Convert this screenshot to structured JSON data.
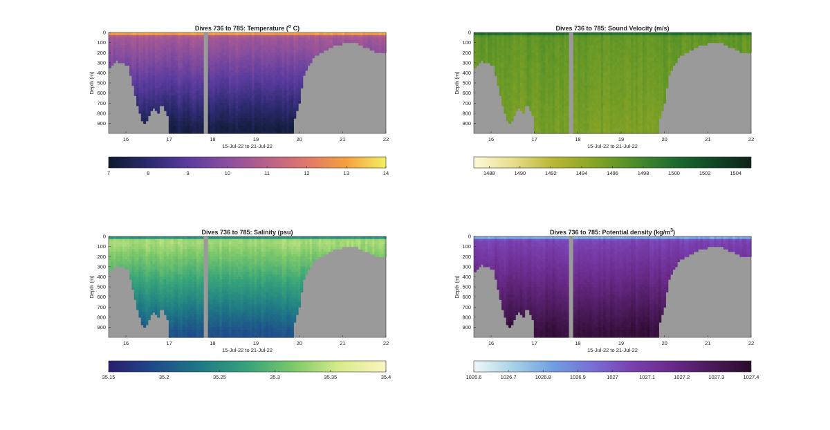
{
  "figure": {
    "background": "#ffffff",
    "mask_color": "#9a9a9a"
  },
  "chart_data": [
    {
      "type": "heatmap",
      "id": "temperature",
      "title_prefix": "Dives 736 to 785: Temperature (",
      "title_sup": "o",
      "title_suffix": " C)",
      "xlabel": "15-Jul-22 to 21-Jul-22",
      "ylabel": "Depth (m)",
      "xlim": [
        15.6,
        22
      ],
      "ylim": [
        1000,
        0
      ],
      "x_ticks": [
        "16",
        "17",
        "18",
        "19",
        "20",
        "21",
        "22"
      ],
      "y_ticks": [
        "0",
        "100",
        "200",
        "300",
        "400",
        "500",
        "600",
        "700",
        "800",
        "900"
      ],
      "colorbar": {
        "range": [
          7,
          14
        ],
        "ticks": [
          "7",
          "8",
          "9",
          "10",
          "11",
          "12",
          "13",
          "14"
        ],
        "colors": [
          "#0d1a2e",
          "#2b2a6e",
          "#5a3b9e",
          "#8a4f9e",
          "#b8608a",
          "#e0786a",
          "#f5a040",
          "#f2f060"
        ]
      },
      "profile": {
        "surface": 14,
        "upper": 10.6,
        "deep": 7.4
      }
    },
    {
      "type": "heatmap",
      "id": "sound_velocity",
      "title": "Dives 736 to 785: Sound Velocity (m/s)",
      "xlabel": "15-Jul-22 to 21-Jul-22",
      "ylabel": "Depth (m)",
      "xlim": [
        15.6,
        22
      ],
      "ylim": [
        1000,
        0
      ],
      "x_ticks": [
        "16",
        "17",
        "18",
        "19",
        "20",
        "21",
        "22"
      ],
      "y_ticks": [
        "0",
        "100",
        "200",
        "300",
        "400",
        "500",
        "600",
        "700",
        "800",
        "900"
      ],
      "colorbar": {
        "range": [
          1487,
          1505
        ],
        "ticks": [
          "1488",
          "1490",
          "1492",
          "1494",
          "1496",
          "1498",
          "1500",
          "1502",
          "1504"
        ],
        "colors": [
          "#fdfbd8",
          "#e6dd8c",
          "#b9b734",
          "#8aa526",
          "#4f8f28",
          "#206e30",
          "#0f4826",
          "#0e2318"
        ]
      },
      "profile": {
        "surface": 1501.5,
        "upper": 1496.5,
        "deep": 1495.5
      }
    },
    {
      "type": "heatmap",
      "id": "salinity",
      "title": "Dives 736 to 785: Salinity (psu)",
      "xlabel": "15-Jul-22 to 21-Jul-22",
      "ylabel": "Depth (m)",
      "xlim": [
        15.6,
        22
      ],
      "ylim": [
        1000,
        0
      ],
      "x_ticks": [
        "16",
        "17",
        "18",
        "19",
        "20",
        "21",
        "22"
      ],
      "y_ticks": [
        "0",
        "100",
        "200",
        "300",
        "400",
        "500",
        "600",
        "700",
        "800",
        "900"
      ],
      "colorbar": {
        "range": [
          35.15,
          35.4
        ],
        "ticks": [
          "35.15",
          "35.2",
          "35.25",
          "35.3",
          "35.35",
          "35.4"
        ],
        "colors": [
          "#2a1d6e",
          "#1f4b8a",
          "#1f7a86",
          "#36a37a",
          "#7cc86a",
          "#d8ec8a",
          "#fbf5c0"
        ]
      },
      "profile": {
        "surface": 35.22,
        "upper": 35.34,
        "deep": 35.2
      }
    },
    {
      "type": "heatmap",
      "id": "potential_density",
      "title_prefix": "Dives 736 to 785: Potential density (kg/m",
      "title_sup": "3",
      "title_suffix": ")",
      "xlabel": "15-Jul-22 to 21-Jul-22",
      "ylabel": "Depth (m)",
      "xlim": [
        15.6,
        22
      ],
      "ylim": [
        1000,
        0
      ],
      "x_ticks": [
        "16",
        "17",
        "18",
        "19",
        "20",
        "21",
        "22"
      ],
      "y_ticks": [
        "0",
        "100",
        "200",
        "300",
        "400",
        "500",
        "600",
        "700",
        "800",
        "900"
      ],
      "colorbar": {
        "range": [
          1026.6,
          1027.4
        ],
        "ticks": [
          "1026.6",
          "1026.7",
          "1026.8",
          "1026.9",
          "1027",
          "1027.1",
          "1027.2",
          "1027.3",
          "1027.4"
        ],
        "colors": [
          "#f2f8f8",
          "#a6d2e6",
          "#6f9fe0",
          "#7a6ed6",
          "#7a40b0",
          "#6a2a8a",
          "#4a1a5a",
          "#2a0a2a"
        ]
      },
      "profile": {
        "surface": 1026.7,
        "upper": 1027.05,
        "deep": 1027.36
      }
    }
  ],
  "dives": {
    "gap": [
      17.78,
      17.9
    ],
    "bottom_depth": [
      [
        15.6,
        360
      ],
      [
        15.8,
        280
      ],
      [
        16.05,
        330
      ],
      [
        16.3,
        780
      ],
      [
        16.4,
        920
      ],
      [
        16.5,
        850
      ],
      [
        16.62,
        730
      ],
      [
        16.75,
        790
      ],
      [
        16.82,
        710
      ],
      [
        16.95,
        790
      ],
      [
        17.0,
        1000
      ],
      [
        17.78,
        1000
      ],
      [
        17.9,
        1000
      ],
      [
        19.5,
        1000
      ],
      [
        19.85,
        1000
      ],
      [
        19.88,
        880
      ],
      [
        20.0,
        690
      ],
      [
        20.1,
        440
      ],
      [
        20.2,
        330
      ],
      [
        20.35,
        240
      ],
      [
        20.6,
        170
      ],
      [
        20.9,
        120
      ],
      [
        21.15,
        90
      ],
      [
        21.35,
        110
      ],
      [
        21.5,
        140
      ],
      [
        21.6,
        160
      ],
      [
        21.7,
        180
      ],
      [
        21.8,
        210
      ],
      [
        22.0,
        210
      ]
    ]
  }
}
